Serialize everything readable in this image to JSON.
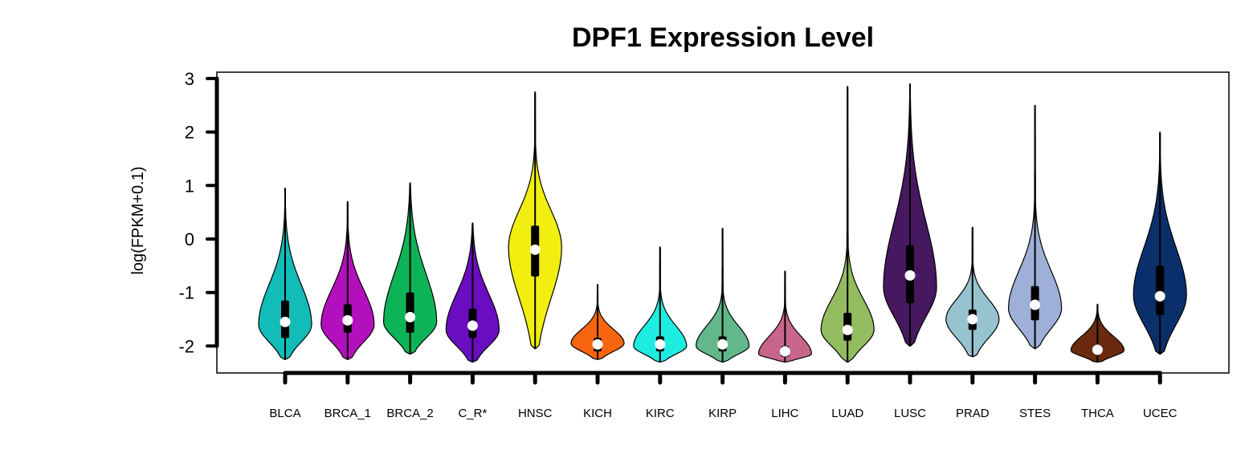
{
  "chart_data": {
    "type": "violin",
    "title": "DPF1 Expression Level",
    "ylabel": "log(FPKM+0.1)",
    "xlabel": "",
    "ylim": [
      -2.5,
      3.1
    ],
    "yticks": [
      -2,
      -1,
      0,
      1,
      2,
      3
    ],
    "grid": false,
    "categories": [
      "BLCA",
      "BRCA_1",
      "BRCA_2",
      "C_R*",
      "HNSC",
      "KICH",
      "KIRC",
      "KIRP",
      "LIHC",
      "LUAD",
      "LUSC",
      "PRAD",
      "STES",
      "THCA",
      "UCEC"
    ],
    "series": [
      {
        "category": "BLCA",
        "color": "#12bcb8",
        "min": -2.25,
        "max": 0.95,
        "q1": -1.85,
        "median": -1.55,
        "q3": -1.15,
        "mode": -1.6
      },
      {
        "category": "BRCA_1",
        "color": "#b310bd",
        "min": -2.25,
        "max": 0.7,
        "q1": -1.75,
        "median": -1.52,
        "q3": -1.22,
        "mode": -1.6
      },
      {
        "category": "BRCA_2",
        "color": "#0db357",
        "min": -2.15,
        "max": 1.05,
        "q1": -1.75,
        "median": -1.46,
        "q3": -1.0,
        "mode": -1.55
      },
      {
        "category": "C_R*",
        "color": "#6a0dc0",
        "min": -2.3,
        "max": 0.3,
        "q1": -1.85,
        "median": -1.62,
        "q3": -1.3,
        "mode": -1.7
      },
      {
        "category": "HNSC",
        "color": "#f2ef10",
        "min": -2.05,
        "max": 2.75,
        "q1": -0.7,
        "median": -0.2,
        "q3": 0.25,
        "mode": -0.15
      },
      {
        "category": "KICH",
        "color": "#f7650f",
        "min": -2.25,
        "max": -0.85,
        "q1": -2.1,
        "median": -1.97,
        "q3": -1.85,
        "mode": -1.95
      },
      {
        "category": "KIRC",
        "color": "#1dede0",
        "min": -2.3,
        "max": -0.15,
        "q1": -2.1,
        "median": -1.97,
        "q3": -1.82,
        "mode": -2.0
      },
      {
        "category": "KIRP",
        "color": "#62b88a",
        "min": -2.3,
        "max": 0.2,
        "q1": -2.1,
        "median": -1.97,
        "q3": -1.82,
        "mode": -2.0
      },
      {
        "category": "LIHC",
        "color": "#c7668a",
        "min": -2.3,
        "max": -0.6,
        "q1": -2.2,
        "median": -2.1,
        "q3": -2.0,
        "mode": -2.15
      },
      {
        "category": "LUAD",
        "color": "#93bc60",
        "min": -2.3,
        "max": 2.85,
        "q1": -1.9,
        "median": -1.7,
        "q3": -1.38,
        "mode": -1.7
      },
      {
        "category": "LUSC",
        "color": "#46185f",
        "min": -2.0,
        "max": 2.9,
        "q1": -1.2,
        "median": -0.68,
        "q3": -0.12,
        "mode": -0.9
      },
      {
        "category": "PRAD",
        "color": "#97c3d0",
        "min": -2.2,
        "max": 0.22,
        "q1": -1.7,
        "median": -1.5,
        "q3": -1.32,
        "mode": -1.5
      },
      {
        "category": "STES",
        "color": "#9eafd8",
        "min": -2.05,
        "max": 2.5,
        "q1": -1.52,
        "median": -1.23,
        "q3": -0.88,
        "mode": -1.3
      },
      {
        "category": "THCA",
        "color": "#6b2a10",
        "min": -2.3,
        "max": -1.22,
        "q1": -2.15,
        "median": -2.07,
        "q3": -1.98,
        "mode": -2.08
      },
      {
        "category": "UCEC",
        "color": "#0b2f6b",
        "min": -2.15,
        "max": 2.0,
        "q1": -1.42,
        "median": -1.07,
        "q3": -0.5,
        "mode": -1.05
      }
    ]
  }
}
